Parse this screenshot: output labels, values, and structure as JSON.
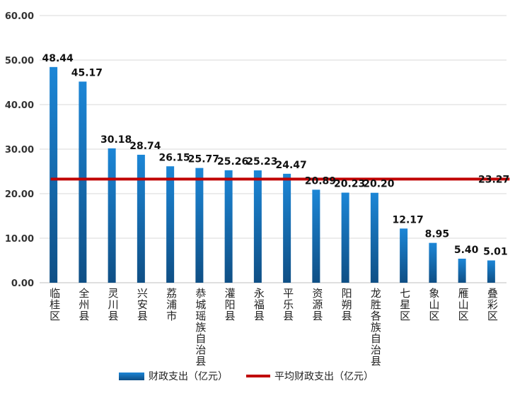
{
  "chart_data": {
    "type": "bar",
    "categories": [
      "临桂区",
      "全州县",
      "灵川县",
      "兴安县",
      "荔浦市",
      "恭城瑶族自治县",
      "灌阳县",
      "永福县",
      "平乐县",
      "资源县",
      "阳朔县",
      "龙胜各族自治县",
      "七星区",
      "象山区",
      "雁山区",
      "叠彩区"
    ],
    "series": [
      {
        "name": "财政支出（亿元）",
        "values": [
          48.44,
          45.17,
          30.18,
          28.74,
          26.15,
          25.77,
          25.26,
          25.23,
          24.47,
          20.89,
          20.23,
          20.2,
          12.17,
          8.95,
          5.4,
          5.01
        ],
        "labels": [
          "48.44",
          "45.17",
          "30.18",
          "28.74",
          "26.15",
          "25.77",
          "25.26",
          "25.23",
          "24.47",
          "20.89",
          "20.23",
          "20.20",
          "12.17",
          "8.95",
          "5.40",
          "5.01"
        ]
      },
      {
        "name": "平均财政支出（亿元）",
        "type": "line",
        "value": 23.27,
        "label": "23.27"
      }
    ],
    "yticks": [
      "0.00",
      "10.00",
      "20.00",
      "30.00",
      "40.00",
      "50.00",
      "60.00"
    ],
    "ylim": [
      0,
      60
    ],
    "grid": true,
    "legend": "bottom",
    "colors": {
      "bar_top": "#1c86d6",
      "bar_bottom": "#0f4f85",
      "line": "#c00000"
    }
  }
}
